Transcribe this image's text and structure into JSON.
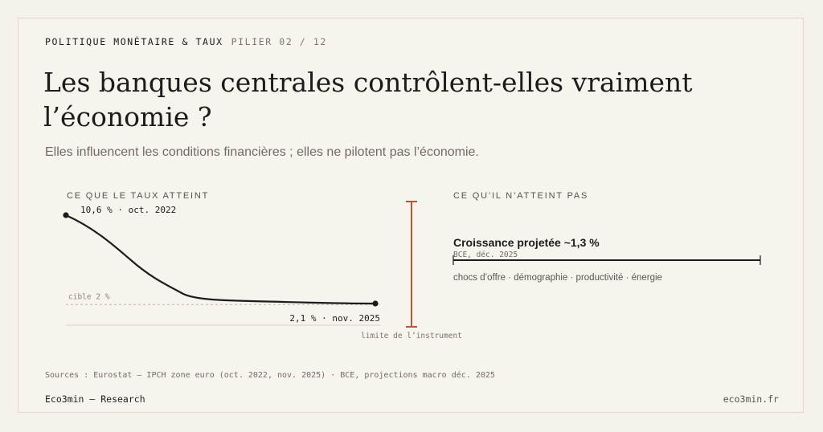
{
  "header": {
    "eyebrow": "POLITIQUE MONÉTAIRE & TAUX",
    "pillar": "PILIER 02 / 12",
    "title": "Les banques centrales contrôlent-elles vraiment l’économie ?",
    "subtitle": "Elles influencent les conditions financières ; elles ne pilotent pas l’économie."
  },
  "left_section": {
    "label": "CE QUE LE TAUX ATTEINT"
  },
  "right_section": {
    "label": "CE QU’IL N’ATTEINT PAS",
    "growth_title": "Croissance projetée ~1,3 %",
    "growth_note": "BCE, déc. 2025",
    "factors": "chocs d’offre · démographie · productivité · énergie"
  },
  "limit_label": "limite de l’instrument",
  "chart_data": {
    "type": "line",
    "series": [
      {
        "x": [
          "oct. 2022",
          "nov. 2025"
        ],
        "y": [
          10.6,
          2.1
        ]
      }
    ],
    "start_label": "10,6 % · oct. 2022",
    "end_label": "2,1 % · nov. 2025",
    "target": {
      "value": 2,
      "label": "cible 2 %"
    },
    "colors": {
      "line": "#1c1c1c",
      "limit": "#c0503a",
      "target": "#bdb8ae"
    }
  },
  "sources": "Sources : Eurostat — IPCH zone euro (oct. 2022, nov. 2025) · BCE, projections macro déc. 2025",
  "footer": {
    "brand": "Eco3min — Research",
    "site": "eco3min.fr"
  }
}
